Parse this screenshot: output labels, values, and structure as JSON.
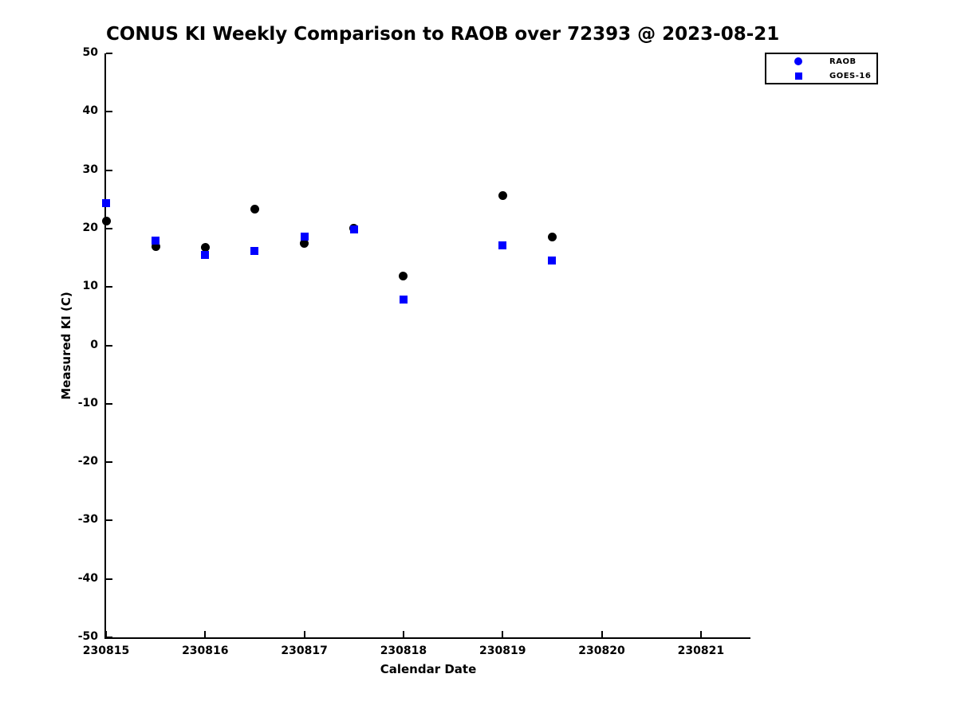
{
  "chart_data": {
    "type": "scatter",
    "title": "CONUS KI Weekly Comparison to RAOB over 72393 @ 2023-08-21",
    "xlabel": "Calendar Date",
    "ylabel": "Measured KI (C)",
    "xlim": [
      230815,
      230821.5
    ],
    "ylim": [
      -50,
      50
    ],
    "x_ticks": [
      "230815",
      "230816",
      "230817",
      "230818",
      "230819",
      "230820",
      "230821"
    ],
    "y_ticks": [
      "50",
      "40",
      "30",
      "20",
      "10",
      "0",
      "-10",
      "-20",
      "-30",
      "-40",
      "-50"
    ],
    "grid": false,
    "background_color": "#ffffff",
    "text_color": "#000000",
    "legend": {
      "position": "top-right",
      "border_color": "#000000",
      "entries": [
        "RAOB",
        "GOES-16"
      ]
    },
    "series": [
      {
        "name": "RAOB",
        "marker": "circle",
        "plot_color": "#000000",
        "legend_color": "#0000ff",
        "marker_size": 11,
        "points": [
          [
            230815.0,
            21.3
          ],
          [
            230815.5,
            16.9
          ],
          [
            230816.0,
            16.8
          ],
          [
            230816.5,
            23.3
          ],
          [
            230817.0,
            17.4
          ],
          [
            230817.5,
            20.1
          ],
          [
            230818.0,
            11.9
          ],
          [
            230819.0,
            25.6
          ],
          [
            230819.5,
            18.5
          ]
        ]
      },
      {
        "name": "GOES-16",
        "marker": "square",
        "plot_color": "#0000ff",
        "legend_color": "#0000ff",
        "marker_size": 10,
        "points": [
          [
            230815.0,
            24.4
          ],
          [
            230815.5,
            18.0
          ],
          [
            230816.0,
            15.5
          ],
          [
            230816.5,
            16.2
          ],
          [
            230817.0,
            18.6
          ],
          [
            230817.5,
            19.8
          ],
          [
            230818.0,
            7.9
          ],
          [
            230819.0,
            17.1
          ],
          [
            230819.5,
            14.5
          ]
        ]
      }
    ]
  }
}
